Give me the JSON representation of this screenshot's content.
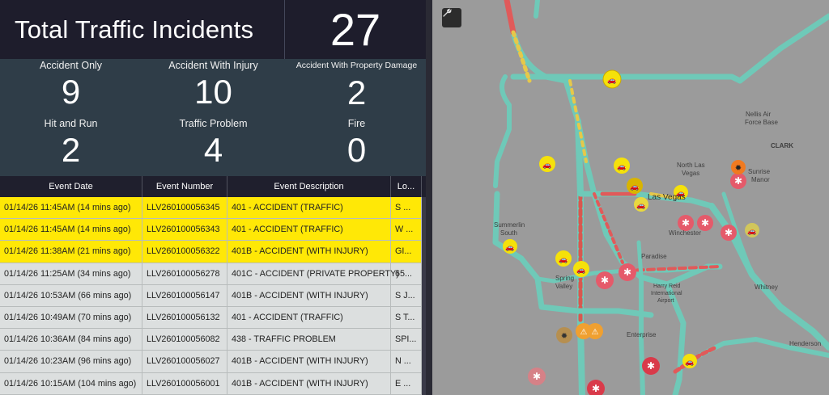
{
  "header": {
    "title": "Total Traffic Incidents",
    "total": "27"
  },
  "stats": [
    {
      "label": "Accident Only",
      "value": "9"
    },
    {
      "label": "Accident With Injury",
      "value": "10"
    },
    {
      "label": "Accident With Property Damage",
      "value": "2"
    },
    {
      "label": "Hit and Run",
      "value": "2"
    },
    {
      "label": "Traffic Problem",
      "value": "4"
    },
    {
      "label": "Fire",
      "value": "0"
    }
  ],
  "table": {
    "columns": [
      "Event Date",
      "Event Number",
      "Event Description",
      "Lo..."
    ],
    "rows": [
      {
        "date": "01/14/26 11:45AM (14 mins ago)",
        "number": "LLV260100056345",
        "desc": "401 - ACCIDENT (TRAFFIC)",
        "loc": "S ...",
        "highlight": true
      },
      {
        "date": "01/14/26 11:45AM (14 mins ago)",
        "number": "LLV260100056343",
        "desc": "401 - ACCIDENT (TRAFFIC)",
        "loc": "W ...",
        "highlight": true
      },
      {
        "date": "01/14/26 11:38AM (21 mins ago)",
        "number": "LLV260100056322",
        "desc": "401B - ACCIDENT (WITH INJURY)",
        "loc": "GI...",
        "highlight": true
      },
      {
        "date": "01/14/26 11:25AM (34 mins ago)",
        "number": "LLV260100056278",
        "desc": "401C - ACCIDENT (PRIVATE PROPERTY)",
        "loc": "65...",
        "highlight": false
      },
      {
        "date": "01/14/26 10:53AM (66 mins ago)",
        "number": "LLV260100056147",
        "desc": "401B - ACCIDENT (WITH INJURY)",
        "loc": "S J...",
        "highlight": false
      },
      {
        "date": "01/14/26 10:49AM (70 mins ago)",
        "number": "LLV260100056132",
        "desc": "401 - ACCIDENT (TRAFFIC)",
        "loc": "S T...",
        "highlight": false
      },
      {
        "date": "01/14/26 10:36AM (84 mins ago)",
        "number": "LLV260100056082",
        "desc": "438 - TRAFFIC PROBLEM",
        "loc": "SPI...",
        "highlight": false
      },
      {
        "date": "01/14/26 10:23AM (96 mins ago)",
        "number": "LLV260100056027",
        "desc": "401B - ACCIDENT (WITH INJURY)",
        "loc": "N ...",
        "highlight": false
      },
      {
        "date": "01/14/26 10:15AM (104 mins ago)",
        "number": "LLV260100056001",
        "desc": "401B - ACCIDENT (WITH INJURY)",
        "loc": "E ...",
        "highlight": false
      }
    ]
  },
  "map": {
    "labels": {
      "clark": "CLARK",
      "nellis": "Nellis Air",
      "nellis2": "Force Base",
      "north_las_vegas": "North Las",
      "north_las_vegas2": "Vegas",
      "sunrise": "Sunrise",
      "sunrise2": "Manor",
      "las_vegas": "Las Vegas",
      "summerlin": "Summerlin",
      "summerlin2": "South",
      "winchester": "Winchester",
      "paradise": "Paradise",
      "spring_valley": "Spring",
      "spring_valley2": "Valley",
      "airport": "Harry Reid",
      "airport2": "International",
      "airport3": "Airport",
      "whitney": "Whitney",
      "enterprise": "Enterprise",
      "henderson": "Henderson"
    },
    "icons": {
      "tool": "wrench-icon",
      "accident": "car-accident-icon",
      "injury": "medical-star-icon",
      "warning": "warning-triangle-icon",
      "fire": "explosion-icon"
    },
    "colors": {
      "road": "#6fc9b8",
      "congested": "#e15a5a",
      "slow": "#e6c84a",
      "accident_marker": "#f5e10a",
      "injury_marker": "#d93a4a",
      "warning_marker": "#f0a030"
    }
  },
  "colors": {
    "highlight_row": "#ffe806",
    "stats_bg": "#2f3d48",
    "header_bg": "#1e1d2c"
  }
}
